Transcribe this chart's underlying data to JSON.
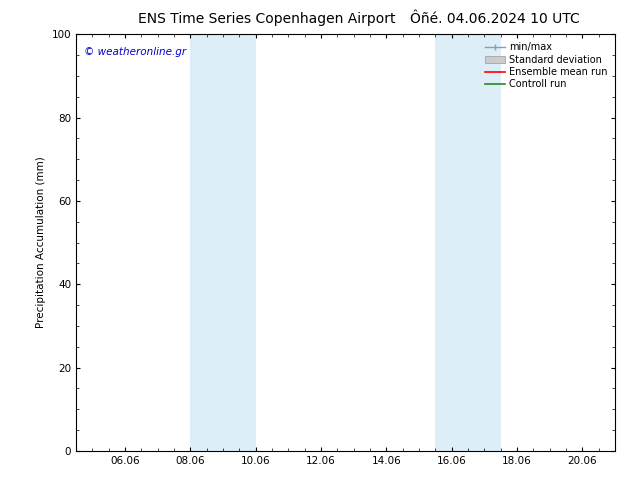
{
  "title_left": "ENS Time Series Copenhagen Airport",
  "title_right": "Ôñé. 04.06.2024 10 UTC",
  "ylabel": "Precipitation Accumulation (mm)",
  "watermark": "© weatheronline.gr",
  "watermark_color": "#0000cc",
  "ylim": [
    0,
    100
  ],
  "xlim_start": 4.5,
  "xlim_end": 21.0,
  "xtick_labels": [
    "06.06",
    "08.06",
    "10.06",
    "12.06",
    "14.06",
    "16.06",
    "18.06",
    "20.06"
  ],
  "xtick_positions": [
    6,
    8,
    10,
    12,
    14,
    16,
    18,
    20
  ],
  "ytick_positions": [
    0,
    20,
    40,
    60,
    80,
    100
  ],
  "shaded_bands": [
    {
      "x_start": 8.0,
      "x_end": 9.0,
      "color": "#ddeef8"
    },
    {
      "x_start": 9.0,
      "x_end": 10.0,
      "color": "#ddeef8"
    },
    {
      "x_start": 15.5,
      "x_end": 16.5,
      "color": "#ddeef8"
    },
    {
      "x_start": 16.5,
      "x_end": 17.5,
      "color": "#ddeef8"
    }
  ],
  "legend_items": [
    {
      "label": "min/max",
      "color": "#aaaaaa",
      "style": "errorbar"
    },
    {
      "label": "Standard deviation",
      "color": "#cccccc",
      "style": "fill"
    },
    {
      "label": "Ensemble mean run",
      "color": "#ff0000",
      "style": "line"
    },
    {
      "label": "Controll run",
      "color": "#228B22",
      "style": "line"
    }
  ],
  "background_color": "#ffffff",
  "spine_color": "#000000",
  "font_size": 7.5,
  "title_font_size": 10
}
